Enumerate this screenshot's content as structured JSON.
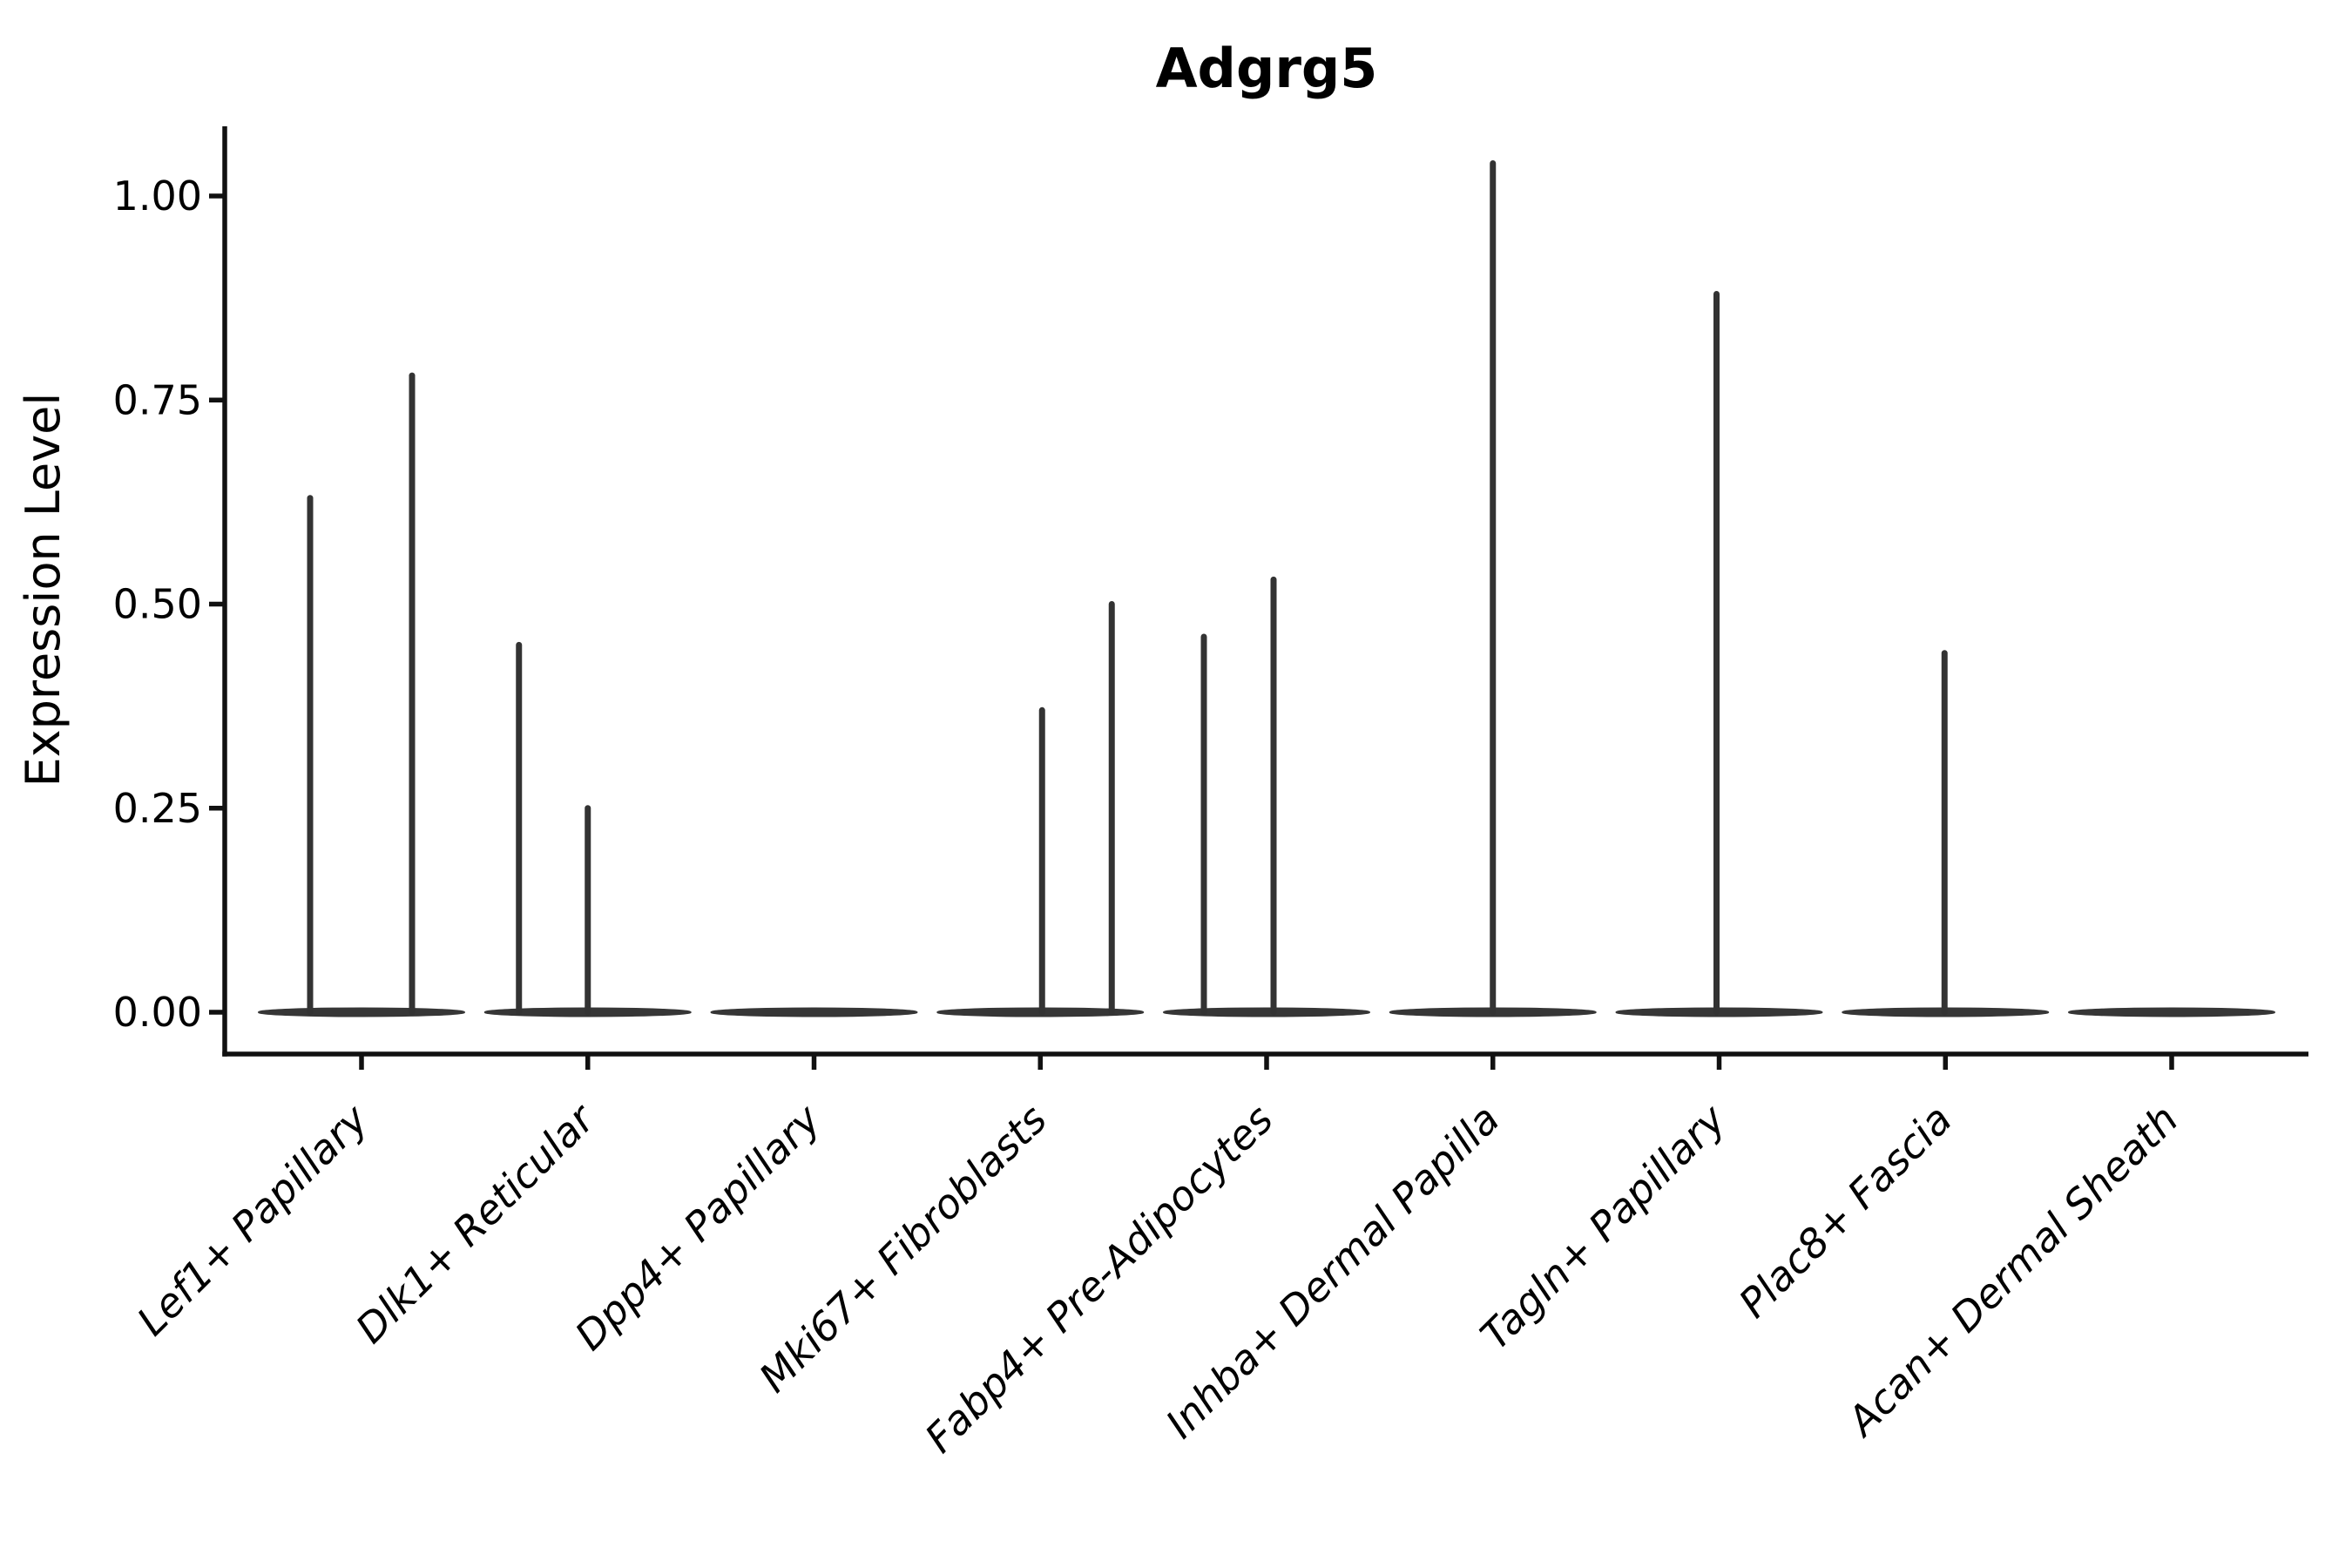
{
  "figure": {
    "title": "Adgrg5",
    "y_axis": {
      "label": "Expression Level",
      "tick_labels": [
        "0.00",
        "0.25",
        "0.50",
        "0.75",
        "1.00"
      ],
      "tick_values": [
        0,
        0.25,
        0.5,
        0.75,
        1.0
      ]
    },
    "colors": {
      "axis": "#111111",
      "text": "#000000",
      "violin": "#363636",
      "spike": "#333333",
      "background": "#ffffff"
    }
  },
  "chart_data": {
    "type": "violin",
    "title": "Adgrg5",
    "xlabel": "",
    "ylabel": "Expression Level",
    "ylim": [
      0,
      1.09
    ],
    "grid": false,
    "legend": false,
    "note": "Sparse single-cell expression violin plot: each category shows a flat violin body at 0 with thin density spikes at non-zero expression values",
    "categories": [
      "Lef1+ Papillary",
      "Dlk1+ Reticular",
      "Dpp4+ Papillary",
      "Mki67+ Fibroblasts",
      "Fabp4+ Pre-Adipocytes",
      "Inhba+ Dermal Papilla",
      "Tagln+ Papillary",
      "Plac8+ Fascia",
      "Acan+ Dermal Sheath"
    ],
    "series": [
      {
        "name": "Lef1+ Papillary",
        "baseline_value": 0,
        "spikes": [
          {
            "value": 0.63,
            "dx": -59
          },
          {
            "value": 0.78,
            "dx": 58
          }
        ]
      },
      {
        "name": "Dlk1+ Reticular",
        "baseline_value": 0,
        "spikes": [
          {
            "value": 0.45,
            "dx": -79
          },
          {
            "value": 0.25,
            "dx": 0
          }
        ]
      },
      {
        "name": "Dpp4+ Papillary",
        "baseline_value": 0,
        "spikes": []
      },
      {
        "name": "Mki67+ Fibroblasts",
        "baseline_value": 0,
        "spikes": [
          {
            "value": 0.37,
            "dx": 2
          },
          {
            "value": 0.5,
            "dx": 82
          }
        ]
      },
      {
        "name": "Fabp4+ Pre-Adipocytes",
        "baseline_value": 0,
        "spikes": [
          {
            "value": 0.46,
            "dx": -72
          },
          {
            "value": 0.53,
            "dx": 8
          }
        ]
      },
      {
        "name": "Inhba+ Dermal Papilla",
        "baseline_value": 0,
        "spikes": [
          {
            "value": 1.04,
            "dx": 0
          }
        ]
      },
      {
        "name": "Tagln+ Papillary",
        "baseline_value": 0,
        "spikes": [
          {
            "value": 0.88,
            "dx": -3
          }
        ]
      },
      {
        "name": "Plac8+ Fascia",
        "baseline_value": 0,
        "spikes": [
          {
            "value": 0.44,
            "dx": -1
          }
        ]
      },
      {
        "name": "Acan+ Dermal Sheath",
        "baseline_value": 0,
        "spikes": []
      }
    ]
  }
}
